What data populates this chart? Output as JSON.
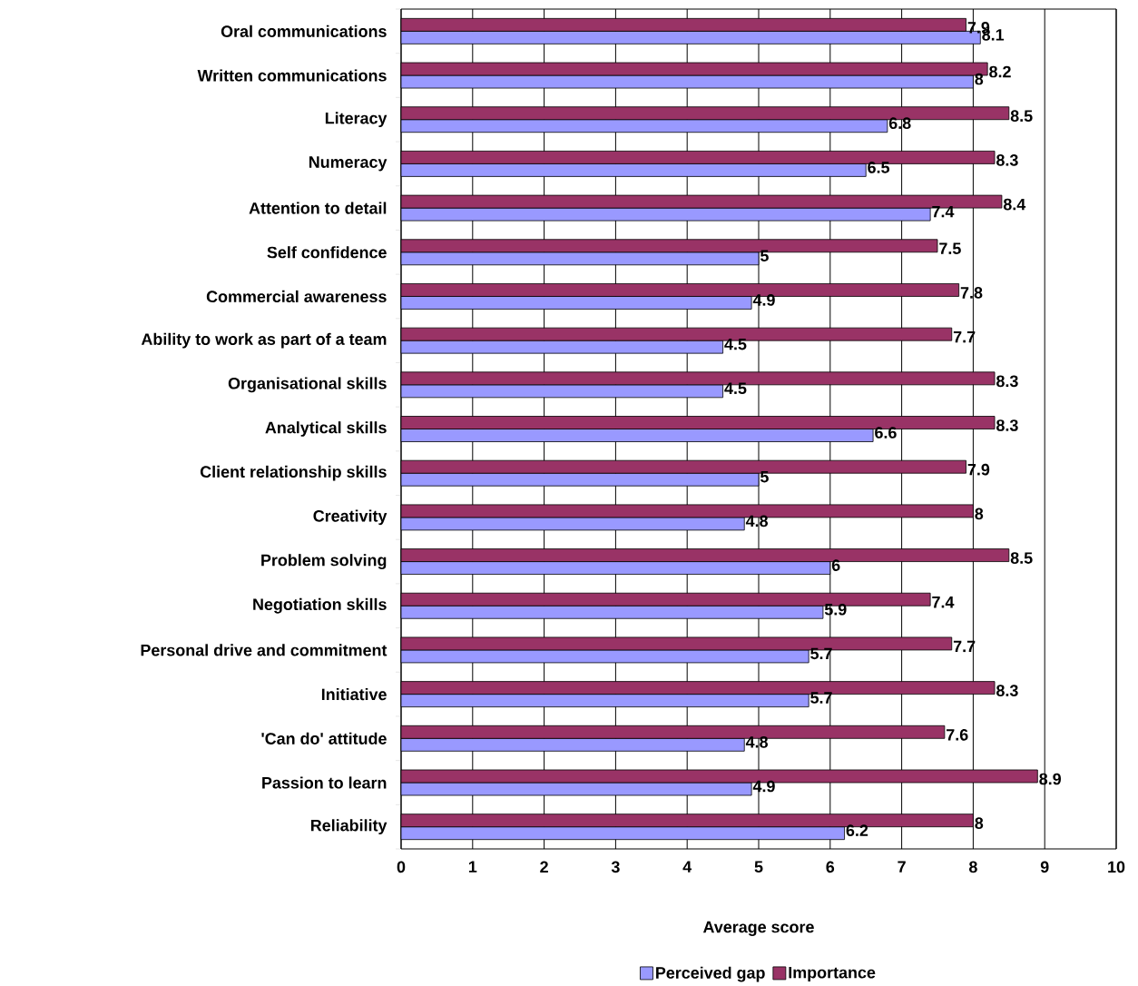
{
  "chart_data": {
    "type": "bar",
    "orientation": "horizontal",
    "xlabel": "Average score",
    "categories": [
      "Oral communications",
      "Written communications",
      "Literacy",
      "Numeracy",
      "Attention to detail",
      "Self confidence",
      "Commercial awareness",
      "Ability to work as part of a team",
      "Organisational skills",
      "Analytical skills",
      "Client relationship skills",
      "Creativity",
      "Problem solving",
      "Negotiation skills",
      "Personal drive and commitment",
      "Initiative",
      "'Can do' attitude",
      "Passion to learn",
      "Reliability"
    ],
    "series": [
      {
        "name": "Perceived gap",
        "color": "#9999ff",
        "values": [
          8.1,
          8,
          6.8,
          6.5,
          7.4,
          5,
          4.9,
          4.5,
          4.5,
          6.6,
          5,
          4.8,
          6,
          5.9,
          5.7,
          5.7,
          4.8,
          4.9,
          6.2
        ]
      },
      {
        "name": "Importance",
        "color": "#993366",
        "values": [
          7.9,
          8.2,
          8.5,
          8.3,
          8.4,
          7.5,
          7.8,
          7.7,
          8.3,
          8.3,
          7.9,
          8,
          8.5,
          7.4,
          7.7,
          8.3,
          7.6,
          8.9,
          8
        ]
      }
    ],
    "xlim": [
      0,
      10
    ],
    "xticks": [
      0,
      1,
      2,
      3,
      4,
      5,
      6,
      7,
      8,
      9,
      10
    ],
    "grid": "x",
    "legend": "bottom",
    "data_labels": true
  }
}
